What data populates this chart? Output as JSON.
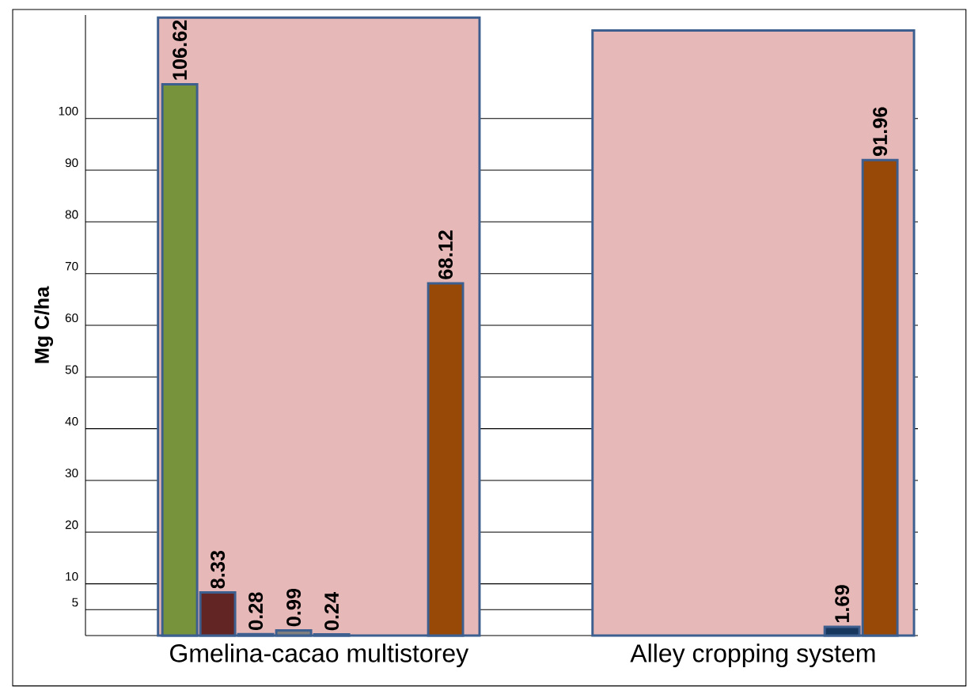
{
  "chart_data": {
    "type": "bar",
    "ylabel": "Mg C/ha",
    "categories": [
      "Gmelina-cacao multistorey",
      "Alley cropping system"
    ],
    "series": [
      {
        "color": "#77933c",
        "values": [
          106.62,
          null
        ],
        "value_labels": [
          "106.62",
          null
        ]
      },
      {
        "color": "#632523",
        "values": [
          8.33,
          null
        ],
        "value_labels": [
          "8.33",
          null
        ]
      },
      {
        "color": "#93cddd",
        "values": [
          0.28,
          null
        ],
        "value_labels": [
          "0.28",
          null
        ]
      },
      {
        "color": "#7f7f7f",
        "values": [
          0.99,
          null
        ],
        "value_labels": [
          "0.99",
          null
        ]
      },
      {
        "color": "#e6b8b7",
        "values": [
          119.5,
          117
        ]
      },
      {
        "color": "#ff0000",
        "values": [
          0.24,
          null
        ],
        "value_labels": [
          "0.24",
          null
        ]
      },
      {
        "color": "#17375e",
        "values": [
          null,
          1.69
        ],
        "value_labels": [
          null,
          "1.69"
        ]
      },
      {
        "color": "#984807",
        "values": [
          68.12,
          91.96
        ],
        "value_labels": [
          "68.12",
          "91.96"
        ]
      }
    ],
    "ylim": [
      0,
      120
    ],
    "yticks": [
      5,
      10,
      20,
      30,
      40,
      50,
      60,
      70,
      80,
      90,
      100
    ],
    "grid": "y"
  }
}
